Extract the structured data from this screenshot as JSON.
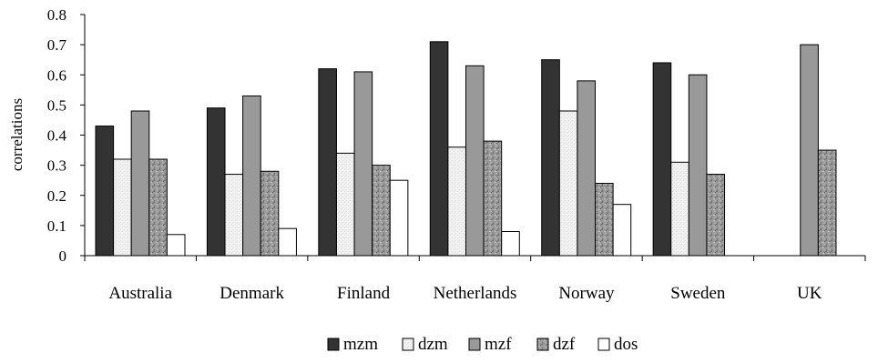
{
  "chart_data": {
    "type": "bar",
    "title": "",
    "xlabel": "",
    "ylabel": "correlations",
    "ylim": [
      0,
      0.8
    ],
    "yticks": [
      "0",
      "0.1",
      "0.2",
      "0.3",
      "0.4",
      "0.5",
      "0.6",
      "0.7",
      "0.8"
    ],
    "grid": false,
    "legend_position": "bottom",
    "categories": [
      "Australia",
      "Denmark",
      "Finland",
      "Netherlands",
      "Norway",
      "Sweden",
      "UK"
    ],
    "series": [
      {
        "name": "mzm",
        "values": [
          0.43,
          0.49,
          0.62,
          0.71,
          0.65,
          0.64,
          null
        ],
        "color": "#333333",
        "pattern": "solid-dark"
      },
      {
        "name": "dzm",
        "values": [
          0.32,
          0.27,
          0.34,
          0.36,
          0.48,
          0.31,
          null
        ],
        "color": "#eeeeee",
        "pattern": "light-speckle"
      },
      {
        "name": "mzf",
        "values": [
          0.48,
          0.53,
          0.61,
          0.63,
          0.58,
          0.6,
          0.7
        ],
        "color": "#999999",
        "pattern": "solid-gray"
      },
      {
        "name": "dzf",
        "values": [
          0.32,
          0.28,
          0.3,
          0.38,
          0.24,
          0.27,
          0.35
        ],
        "color": "#8a8a8a",
        "pattern": "dark-texture"
      },
      {
        "name": "dos",
        "values": [
          0.07,
          0.09,
          0.25,
          0.08,
          0.17,
          null,
          null
        ],
        "color": "#ffffff",
        "pattern": "solid-white"
      }
    ]
  }
}
